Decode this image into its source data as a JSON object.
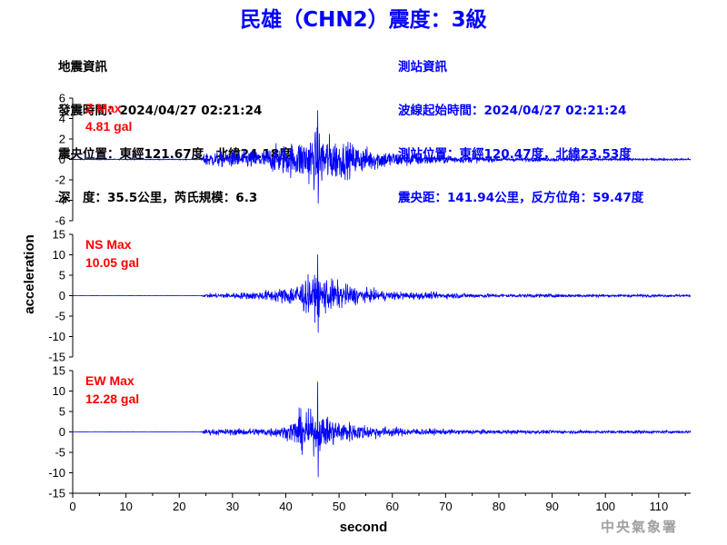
{
  "title": "民雄（CHN2）震度：3級",
  "info_left": [
    "地震資訊",
    "發震時間：2024/04/27 02:21:24",
    "震央位置：東經121.67度，北緯24.18度",
    "深　度：35.5公里，芮氏規模：6.3"
  ],
  "info_right": [
    "測站資訊",
    "波線起始時間：2024/04/27 02:21:24",
    "測站位置：東經120.47度，北緯23.53度",
    "震央距：141.94公里，反方位角：59.47度"
  ],
  "agency": "中央氣象署",
  "colors": {
    "title": "#0000ff",
    "trace": "#0000ff",
    "max_label": "#ff0000",
    "axis": "#000000",
    "agency": "#a0a0a0"
  },
  "chart_data": {
    "type": "line",
    "xlabel": "second",
    "ylabel": "acceleration",
    "xlim": [
      0,
      116
    ],
    "x_ticks": [
      0,
      10,
      20,
      30,
      40,
      50,
      60,
      70,
      80,
      90,
      100,
      110
    ],
    "p_arrival_s": 24.5,
    "peak_time_s": 46,
    "panels": [
      {
        "component": "Z",
        "max_label": "Z Max",
        "max_value_label": "4.81 gal",
        "peak_abs": 4.81,
        "ylim": [
          -6,
          6
        ],
        "y_ticks": [
          6,
          4,
          2,
          0,
          -2,
          -4,
          -6
        ],
        "envelope": [
          [
            0,
            0.05
          ],
          [
            24,
            0.05
          ],
          [
            25,
            0.9
          ],
          [
            30,
            1.0
          ],
          [
            35,
            1.2
          ],
          [
            42,
            2.2
          ],
          [
            46,
            3.6
          ],
          [
            50,
            2.4
          ],
          [
            55,
            1.5
          ],
          [
            60,
            1.0
          ],
          [
            70,
            0.5
          ],
          [
            80,
            0.3
          ],
          [
            100,
            0.15
          ],
          [
            116,
            0.12
          ]
        ]
      },
      {
        "component": "NS",
        "max_label": "NS Max",
        "max_value_label": "10.05 gal",
        "peak_abs": 10.05,
        "ylim": [
          -15,
          15
        ],
        "y_ticks": [
          15,
          10,
          5,
          0,
          -5,
          -10,
          -15
        ],
        "envelope": [
          [
            0,
            0.03
          ],
          [
            24,
            0.03
          ],
          [
            25,
            0.6
          ],
          [
            30,
            0.9
          ],
          [
            35,
            1.3
          ],
          [
            40,
            2.5
          ],
          [
            44,
            5.5
          ],
          [
            47,
            6.0
          ],
          [
            50,
            4.0
          ],
          [
            55,
            2.0
          ],
          [
            60,
            1.3
          ],
          [
            70,
            0.9
          ],
          [
            80,
            0.6
          ],
          [
            100,
            0.4
          ],
          [
            116,
            0.35
          ]
        ]
      },
      {
        "component": "EW",
        "max_label": "EW Max",
        "max_value_label": "12.28 gal",
        "peak_abs": 12.28,
        "ylim": [
          -15,
          15
        ],
        "y_ticks": [
          15,
          10,
          5,
          0,
          -5,
          -10,
          -15
        ],
        "envelope": [
          [
            0,
            0.03
          ],
          [
            24,
            0.03
          ],
          [
            25,
            0.8
          ],
          [
            30,
            1.0
          ],
          [
            35,
            1.2
          ],
          [
            40,
            1.8
          ],
          [
            43,
            6.5
          ],
          [
            45,
            6.0
          ],
          [
            48,
            4.5
          ],
          [
            52,
            3.0
          ],
          [
            56,
            2.0
          ],
          [
            62,
            1.2
          ],
          [
            70,
            0.8
          ],
          [
            80,
            0.6
          ],
          [
            100,
            0.45
          ],
          [
            116,
            0.4
          ]
        ]
      }
    ]
  }
}
